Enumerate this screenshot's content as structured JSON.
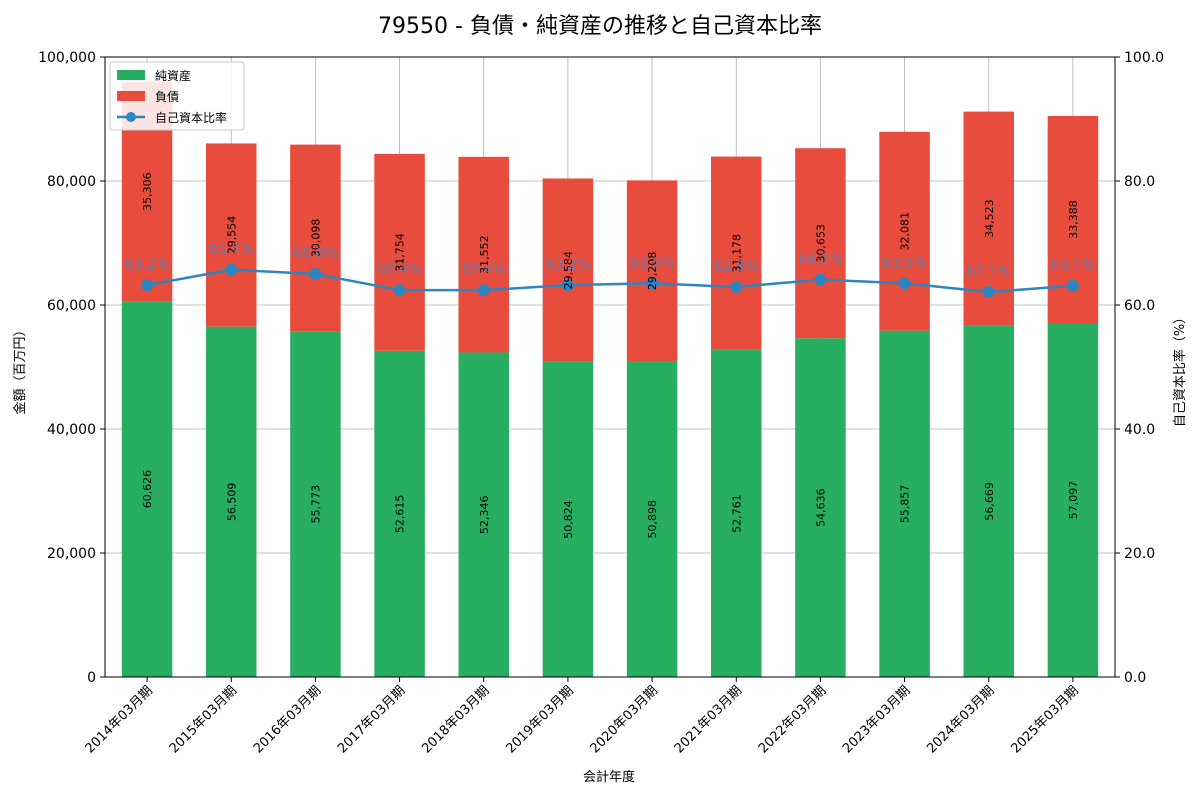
{
  "chart_data": {
    "type": "bar",
    "stacked": true,
    "title": "79550 - 負債・純資産の推移と自己資本比率",
    "xlabel": "会計年度",
    "ylabel": "金額（百万円）",
    "y2label": "自己資本比率（%）",
    "ylim": [
      0,
      100000
    ],
    "y2lim": [
      0,
      100
    ],
    "yticks": [
      "0",
      "20,000",
      "40,000",
      "60,000",
      "80,000",
      "100,000"
    ],
    "y2ticks": [
      "0.0",
      "20.0",
      "40.0",
      "60.0",
      "80.0",
      "100.0"
    ],
    "grid": true,
    "legend_position": "top-left",
    "categories": [
      "2014年03月期",
      "2015年03月期",
      "2016年03月期",
      "2017年03月期",
      "2018年03月期",
      "2019年03月期",
      "2020年03月期",
      "2021年03月期",
      "2022年03月期",
      "2023年03月期",
      "2024年03月期",
      "2025年03月期"
    ],
    "series": [
      {
        "name": "純資産",
        "kind": "bar",
        "color": "#27ae60",
        "values": [
          60626,
          56509,
          55773,
          52615,
          52346,
          50824,
          50898,
          52761,
          54636,
          55857,
          56669,
          57097
        ],
        "labels": [
          "60,626",
          "56,509",
          "55,773",
          "52,615",
          "52,346",
          "50,824",
          "50,898",
          "52,761",
          "54,636",
          "55,857",
          "56,669",
          "57,097"
        ]
      },
      {
        "name": "負債",
        "kind": "bar",
        "color": "#e74c3c",
        "values": [
          35306,
          29554,
          30098,
          31754,
          31552,
          29584,
          29208,
          31178,
          30653,
          32081,
          34523,
          33388
        ],
        "labels": [
          "35,306",
          "29,554",
          "30,098",
          "31,754",
          "31,552",
          "29,584",
          "29,208",
          "31,178",
          "30,653",
          "32,081",
          "34,523",
          "33,388"
        ]
      },
      {
        "name": "自己資本比率",
        "kind": "line",
        "axis": "right",
        "color": "#2e86c1",
        "values": [
          63.2,
          65.7,
          65.0,
          62.4,
          62.4,
          63.2,
          63.5,
          62.9,
          64.1,
          63.5,
          62.1,
          63.1
        ],
        "labels": [
          "63.2%",
          "65.7%",
          "65.0%",
          "62.4%",
          "62.4%",
          "63.2%",
          "63.5%",
          "62.9%",
          "64.1%",
          "63.5%",
          "62.1%",
          "63.1%"
        ]
      }
    ]
  }
}
